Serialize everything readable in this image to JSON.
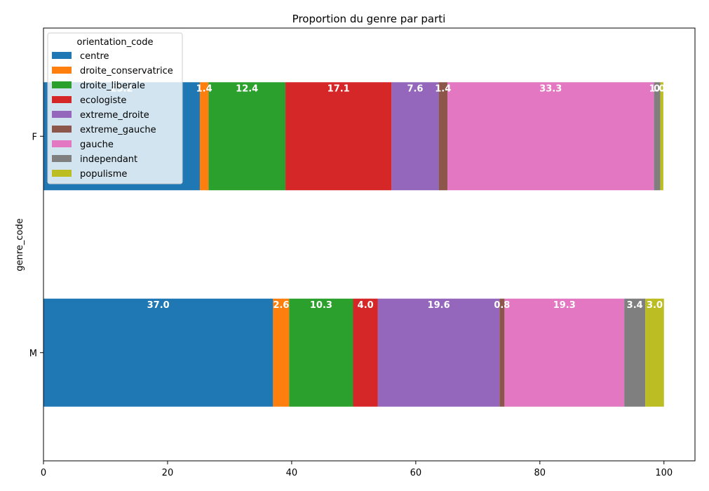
{
  "chart_data": {
    "type": "bar",
    "orientation": "horizontal",
    "stacked": true,
    "title": "Proportion du genre par parti",
    "xlabel": "",
    "ylabel": "genre_code",
    "xlim": [
      0,
      105
    ],
    "xticks": [
      0,
      20,
      40,
      60,
      80,
      100
    ],
    "categories": [
      "F",
      "M"
    ],
    "legend": {
      "title": "orientation_code",
      "placement": "top-left"
    },
    "grid": false,
    "series": [
      {
        "name": "centre",
        "color": "#1f77b4",
        "values": [
          25.2,
          37.0
        ],
        "labels": [
          "25.2",
          "37.0"
        ]
      },
      {
        "name": "droite_conservatrice",
        "color": "#ff7f0e",
        "values": [
          1.4,
          2.6
        ],
        "labels": [
          "1.4",
          "2.6"
        ]
      },
      {
        "name": "droite_liberale",
        "color": "#2ca02c",
        "values": [
          12.4,
          10.3
        ],
        "labels": [
          "12.4",
          "10.3"
        ]
      },
      {
        "name": "ecologiste",
        "color": "#d62728",
        "values": [
          17.1,
          4.0
        ],
        "labels": [
          "17.1",
          "4.0"
        ]
      },
      {
        "name": "extreme_droite",
        "color": "#9467bd",
        "values": [
          7.6,
          19.6
        ],
        "labels": [
          "7.6",
          "19.6"
        ]
      },
      {
        "name": "extreme_gauche",
        "color": "#8c564b",
        "values": [
          1.4,
          0.8
        ],
        "labels": [
          "1.4",
          "0.8"
        ]
      },
      {
        "name": "gauche",
        "color": "#e377c2",
        "values": [
          33.3,
          19.3
        ],
        "labels": [
          "33.3",
          "19.3"
        ]
      },
      {
        "name": "independant",
        "color": "#7f7f7f",
        "values": [
          1.0,
          3.4
        ],
        "labels": [
          "1.0",
          "3.4"
        ]
      },
      {
        "name": "populisme",
        "color": "#bcbd22",
        "values": [
          0.5,
          3.0
        ],
        "labels": [
          "0.5",
          "3.0"
        ]
      }
    ]
  }
}
